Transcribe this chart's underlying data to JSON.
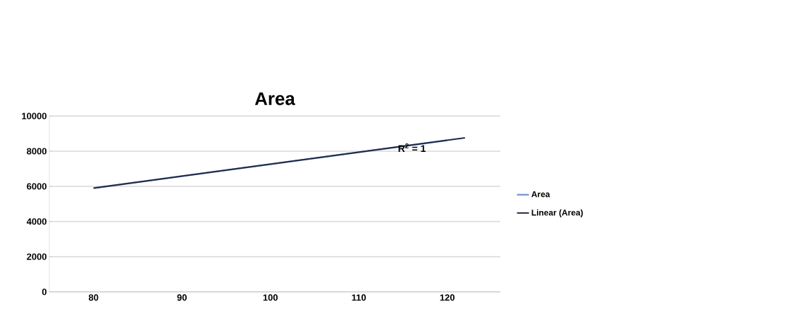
{
  "chart_data": {
    "type": "line",
    "title": "Area",
    "x": [
      80,
      90,
      100,
      110,
      120
    ],
    "series": [
      {
        "name": "Area",
        "color": "#7f9ccf",
        "values": [
          5900,
          6580,
          7260,
          7940,
          8620
        ]
      },
      {
        "name": "Linear (Area)",
        "color": "#1f2a44",
        "type": "line",
        "x": [
          80,
          122
        ],
        "values": [
          5900,
          8760
        ]
      }
    ],
    "xlim": [
      75,
      126
    ],
    "xticks": [
      80,
      90,
      100,
      110,
      120
    ],
    "ylim": [
      0,
      10000
    ],
    "yticks": [
      0,
      2000,
      4000,
      6000,
      8000,
      10000
    ],
    "grid": "y",
    "legend": "right",
    "marker": "none",
    "line_style": "solid",
    "annotations": [
      {
        "text": "R$^{2}$ = 1",
        "x": 116,
        "y": 8200
      }
    ]
  }
}
